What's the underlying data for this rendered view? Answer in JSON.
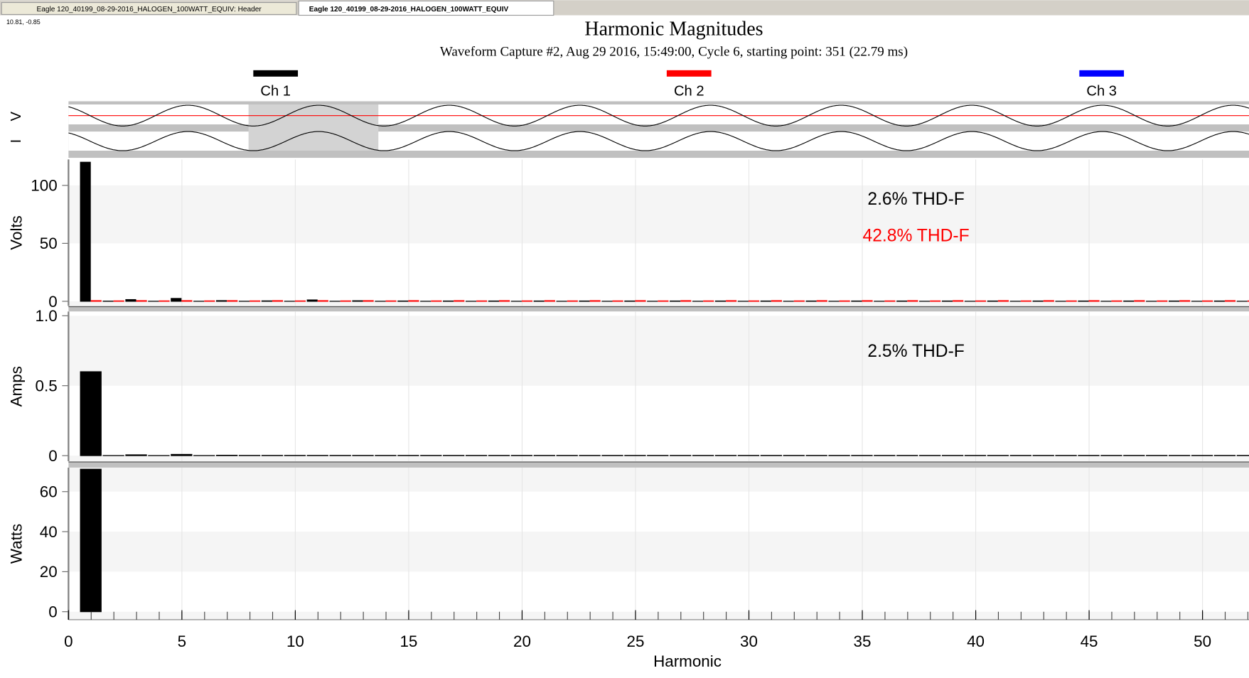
{
  "tabs": [
    "Eagle 120_40199_08-29-2016_HALOGEN_100WATT_EQUIV: Header",
    "Eagle 120_40199_08-29-2016_HALOGEN_100WATT_EQUIV"
  ],
  "cursor": "10.81, -0.85",
  "header": {
    "title": "Harmonic Magnitudes",
    "subtitle": "Waveform Capture #2, Aug 29 2016, 15:49:00, Cycle 6,  starting point: 351  (22.79 ms)",
    "legend": [
      {
        "name": "Ch 1",
        "color": "#000000"
      },
      {
        "name": "Ch 2",
        "color": "#ff0000"
      },
      {
        "name": "Ch 3",
        "color": "#0000ff"
      }
    ]
  },
  "waveform": {
    "labels": [
      "V",
      "I"
    ]
  },
  "chart_data": [
    {
      "type": "bar",
      "ylabel": "Volts",
      "xlim": [
        0,
        52.05
      ],
      "ylim": [
        -4,
        122.4
      ],
      "yticks": [
        0,
        50,
        100
      ],
      "x": [
        1,
        2,
        3,
        4,
        5,
        6,
        7,
        8,
        9,
        10,
        11,
        12,
        13,
        14,
        15,
        16,
        17,
        18,
        19,
        20,
        21,
        22,
        23,
        24,
        25,
        26,
        27,
        28,
        29,
        30,
        31,
        32,
        33,
        34,
        35,
        36,
        37,
        38,
        39,
        40,
        41,
        42,
        43,
        44,
        45,
        46,
        47,
        48,
        49,
        50,
        51,
        52
      ],
      "series": [
        {
          "color": "#000000",
          "values": [
            120,
            0.2,
            1.5,
            0.1,
            2.5,
            0.1,
            0.6,
            0.1,
            0.4,
            0.1,
            1.2,
            0.1,
            0.5,
            0.1,
            0.3,
            0.1,
            0.3,
            0.1,
            0.3,
            0.1,
            0.3,
            0.1,
            0.3,
            0.1,
            0.3,
            0.1,
            0.3,
            0.1,
            0.3,
            0.1,
            0.3,
            0.1,
            0.3,
            0.1,
            0.3,
            0.1,
            0.3,
            0.1,
            0.3,
            0.1,
            0.3,
            0.1,
            0.3,
            0.1,
            0.3,
            0.1,
            0.3,
            0.1,
            0.3,
            0.1,
            0.3,
            0.1
          ]
        },
        {
          "color": "#ff0000",
          "values": [
            0.6,
            0.4,
            0.6,
            0.4,
            0.6,
            0.4,
            0.6,
            0.4,
            0.6,
            0.4,
            0.6,
            0.4,
            0.6,
            0.4,
            0.6,
            0.4,
            0.6,
            0.4,
            0.6,
            0.4,
            0.6,
            0.4,
            0.6,
            0.4,
            0.6,
            0.4,
            0.6,
            0.4,
            0.6,
            0.4,
            0.6,
            0.4,
            0.6,
            0.4,
            0.6,
            0.4,
            0.6,
            0.4,
            0.6,
            0.4,
            0.6,
            0.4,
            0.6,
            0.4,
            0.6,
            0.4,
            0.6,
            0.4,
            0.6,
            0.4,
            0.6,
            0.4
          ]
        }
      ],
      "annotations": [
        {
          "text": "2.6% THD-F",
          "color": "#000000"
        },
        {
          "text": "42.8% THD-F",
          "color": "#ff0000"
        }
      ]
    },
    {
      "type": "bar",
      "ylabel": "Amps",
      "xlim": [
        0,
        52.05
      ],
      "ylim": [
        -0.04,
        1.03
      ],
      "yticks": [
        0,
        0.5,
        {
          "value": 1,
          "label": "1.0"
        }
      ],
      "x": [
        1,
        2,
        3,
        4,
        5,
        6,
        7,
        8,
        9,
        10,
        11,
        12,
        13,
        14,
        15,
        16,
        17,
        18,
        19,
        20,
        21,
        22,
        23,
        24,
        25,
        26,
        27,
        28,
        29,
        30,
        31,
        32,
        33,
        34,
        35,
        36,
        37,
        38,
        39,
        40,
        41,
        42,
        43,
        44,
        45,
        46,
        47,
        48,
        49,
        50,
        51,
        52
      ],
      "series": [
        {
          "color": "#000000",
          "values": [
            0.6,
            0.001,
            0.006,
            0.001,
            0.009,
            0.001,
            0.003,
            0.002,
            0.002,
            0.002,
            0.002,
            0.002,
            0.002,
            0.002,
            0.002,
            0.002,
            0.002,
            0.002,
            0.002,
            0.002,
            0.002,
            0.002,
            0.002,
            0.002,
            0.002,
            0.002,
            0.002,
            0.002,
            0.002,
            0.002,
            0.002,
            0.002,
            0.002,
            0.002,
            0.002,
            0.002,
            0.002,
            0.002,
            0.002,
            0.002,
            0.002,
            0.002,
            0.002,
            0.002,
            0.002,
            0.002,
            0.002,
            0.002,
            0.002,
            0.002,
            0.002,
            0.002
          ]
        }
      ],
      "annotations": [
        {
          "text": "2.5% THD-F",
          "color": "#000000"
        }
      ]
    },
    {
      "type": "bar",
      "ylabel": "Watts",
      "xlabel": "Harmonic",
      "xlim": [
        0,
        52.05
      ],
      "ylim": [
        -4,
        72
      ],
      "yticks": [
        0,
        20,
        40,
        60
      ],
      "xticks": [
        0,
        5,
        10,
        15,
        20,
        25,
        30,
        35,
        40,
        45,
        50
      ],
      "x": [
        1
      ],
      "series": [
        {
          "color": "#000000",
          "values": [
            71.2
          ]
        }
      ]
    }
  ]
}
